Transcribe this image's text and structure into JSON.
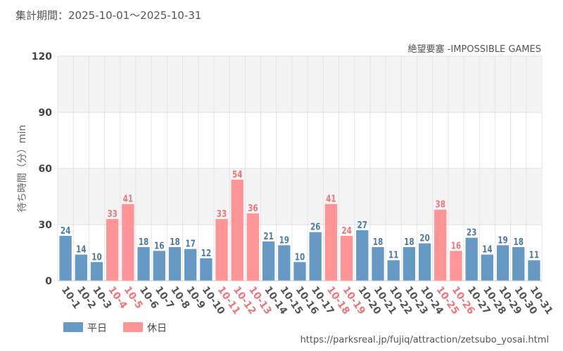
{
  "header": {
    "period": "集計期間：2025-10-01～2025-10-31",
    "subtitle": "絶望要塞 -IMPOSSIBLE GAMES"
  },
  "footer": {
    "source": "https://parksreal.jp/fujiq/attraction/zetsubo_yosai.html"
  },
  "colors": {
    "weekday": "#6699C4",
    "holiday": "#FF9496",
    "weekday_label": "#4E7AA6",
    "holiday_label": "#F07478",
    "band": "#F4F4F4"
  },
  "chart_data": {
    "type": "bar",
    "title": "",
    "xlabel": "",
    "ylabel": "待ち時間（分）min",
    "ylim": [
      0,
      120
    ],
    "yticks": [
      "0",
      "30",
      "60",
      "90",
      "120"
    ],
    "categories": [
      "10-1",
      "10-2",
      "10-3",
      "10-4",
      "10-5",
      "10-6",
      "10-7",
      "10-8",
      "10-9",
      "10-10",
      "10-11",
      "10-12",
      "10-13",
      "10-14",
      "10-15",
      "10-16",
      "10-17",
      "10-18",
      "10-19",
      "10-20",
      "10-21",
      "10-22",
      "10-23",
      "10-24",
      "10-25",
      "10-26",
      "10-27",
      "10-28",
      "10-29",
      "10-30",
      "10-31"
    ],
    "values": [
      24,
      14,
      10,
      33,
      41,
      18,
      16,
      18,
      17,
      12,
      33,
      54,
      36,
      21,
      19,
      10,
      26,
      41,
      24,
      27,
      18,
      11,
      18,
      20,
      38,
      16,
      23,
      14,
      19,
      18,
      11
    ],
    "day_type": [
      "weekday",
      "weekday",
      "weekday",
      "holiday",
      "holiday",
      "weekday",
      "weekday",
      "weekday",
      "weekday",
      "weekday",
      "holiday",
      "holiday",
      "holiday",
      "weekday",
      "weekday",
      "weekday",
      "weekday",
      "holiday",
      "holiday",
      "weekday",
      "weekday",
      "weekday",
      "weekday",
      "weekday",
      "holiday",
      "holiday",
      "weekday",
      "weekday",
      "weekday",
      "weekday",
      "weekday"
    ],
    "legend": [
      {
        "key": "weekday",
        "label": "平日"
      },
      {
        "key": "holiday",
        "label": "休日"
      }
    ]
  }
}
